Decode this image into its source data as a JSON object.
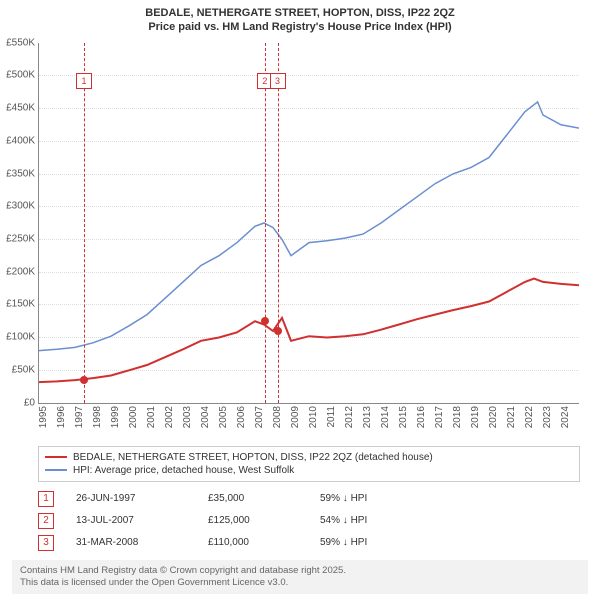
{
  "title_line1": "BEDALE, NETHERGATE STREET, HOPTON, DISS, IP22 2QZ",
  "title_line2": "Price paid vs. HM Land Registry's House Price Index (HPI)",
  "chart": {
    "type": "line",
    "background_color": "#ffffff",
    "grid_color": "#dddddd",
    "axis_color": "#888888",
    "label_fontsize": 10,
    "title_fontsize": 12,
    "x_min": 1995,
    "x_max": 2025,
    "ylim": [
      0,
      550
    ],
    "y_unit": "K",
    "y_prefix": "£",
    "y_tick_step": 50,
    "x_years": [
      1995,
      1996,
      1997,
      1998,
      1999,
      2000,
      2001,
      2002,
      2003,
      2004,
      2005,
      2006,
      2007,
      2008,
      2009,
      2010,
      2011,
      2012,
      2013,
      2014,
      2015,
      2016,
      2017,
      2018,
      2019,
      2020,
      2021,
      2022,
      2023,
      2024
    ],
    "series_property": {
      "label": "BEDALE, NETHERGATE STREET, HOPTON, DISS, IP22 2QZ (detached house)",
      "color": "#d03030",
      "line_width": 2,
      "points": [
        [
          1995,
          32
        ],
        [
          1996,
          33
        ],
        [
          1997,
          35
        ],
        [
          1998,
          38
        ],
        [
          1999,
          42
        ],
        [
          2000,
          50
        ],
        [
          2001,
          58
        ],
        [
          2002,
          70
        ],
        [
          2003,
          82
        ],
        [
          2004,
          95
        ],
        [
          2005,
          100
        ],
        [
          2006,
          108
        ],
        [
          2007,
          125
        ],
        [
          2007.5,
          120
        ],
        [
          2008,
          110
        ],
        [
          2008.5,
          130
        ],
        [
          2009,
          95
        ],
        [
          2010,
          102
        ],
        [
          2011,
          100
        ],
        [
          2012,
          102
        ],
        [
          2013,
          105
        ],
        [
          2014,
          112
        ],
        [
          2015,
          120
        ],
        [
          2016,
          128
        ],
        [
          2017,
          135
        ],
        [
          2018,
          142
        ],
        [
          2019,
          148
        ],
        [
          2020,
          155
        ],
        [
          2021,
          170
        ],
        [
          2022,
          185
        ],
        [
          2022.5,
          190
        ],
        [
          2023,
          185
        ],
        [
          2024,
          182
        ],
        [
          2025,
          180
        ]
      ]
    },
    "series_hpi": {
      "label": "HPI: Average price, detached house, West Suffolk",
      "color": "#6a8fd0",
      "line_width": 1.5,
      "points": [
        [
          1995,
          80
        ],
        [
          1996,
          82
        ],
        [
          1997,
          85
        ],
        [
          1998,
          92
        ],
        [
          1999,
          102
        ],
        [
          2000,
          118
        ],
        [
          2001,
          135
        ],
        [
          2002,
          160
        ],
        [
          2003,
          185
        ],
        [
          2004,
          210
        ],
        [
          2005,
          225
        ],
        [
          2006,
          245
        ],
        [
          2007,
          270
        ],
        [
          2007.5,
          275
        ],
        [
          2008,
          268
        ],
        [
          2008.5,
          250
        ],
        [
          2009,
          225
        ],
        [
          2010,
          245
        ],
        [
          2011,
          248
        ],
        [
          2012,
          252
        ],
        [
          2013,
          258
        ],
        [
          2014,
          275
        ],
        [
          2015,
          295
        ],
        [
          2016,
          315
        ],
        [
          2017,
          335
        ],
        [
          2018,
          350
        ],
        [
          2019,
          360
        ],
        [
          2020,
          375
        ],
        [
          2021,
          410
        ],
        [
          2022,
          445
        ],
        [
          2022.7,
          460
        ],
        [
          2023,
          440
        ],
        [
          2024,
          425
        ],
        [
          2025,
          420
        ]
      ]
    },
    "markers": [
      {
        "n": 1,
        "x": 1997.5,
        "y": 35,
        "box_y": 503
      },
      {
        "n": 2,
        "x": 2007.55,
        "y": 125,
        "box_y": 503
      },
      {
        "n": 3,
        "x": 2008.25,
        "y": 110,
        "box_y": 503
      }
    ]
  },
  "legend": [
    {
      "color": "#d03030",
      "label": "BEDALE, NETHERGATE STREET, HOPTON, DISS, IP22 2QZ (detached house)"
    },
    {
      "color": "#6a8fd0",
      "label": "HPI: Average price, detached house, West Suffolk"
    }
  ],
  "table": [
    {
      "n": "1",
      "date": "26-JUN-1997",
      "price": "£35,000",
      "delta": "59% ↓ HPI"
    },
    {
      "n": "2",
      "date": "13-JUL-2007",
      "price": "£125,000",
      "delta": "54% ↓ HPI"
    },
    {
      "n": "3",
      "date": "31-MAR-2008",
      "price": "£110,000",
      "delta": "59% ↓ HPI"
    }
  ],
  "footer_line1": "Contains HM Land Registry data © Crown copyright and database right 2025.",
  "footer_line2": "This data is licensed under the Open Government Licence v3.0."
}
